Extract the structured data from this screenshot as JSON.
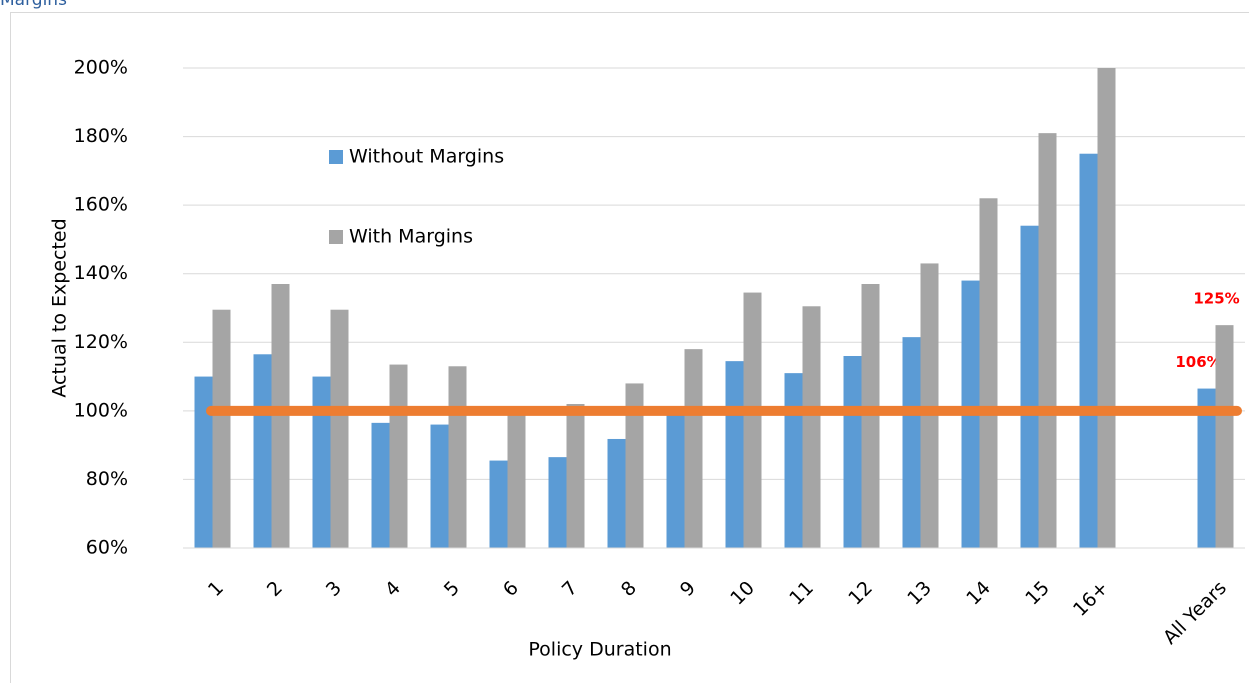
{
  "chart_data": {
    "type": "bar",
    "title": "Margins",
    "x_label": "Policy Duration",
    "y_label": "Actual to Expected",
    "categories": [
      "1",
      "2",
      "3",
      "4",
      "5",
      "6",
      "7",
      "8",
      "9",
      "10",
      "11",
      "12",
      "13",
      "14",
      "15",
      "16+",
      null,
      "All Years"
    ],
    "series": [
      {
        "name": "Without Margins",
        "color": "#5b9bd5",
        "values": [
          110,
          116.5,
          110,
          96.5,
          96,
          85.5,
          86.5,
          91.8,
          100,
          114.5,
          111,
          116,
          121.5,
          138,
          154,
          175,
          null,
          106.5
        ],
        "value_labels": [
          null,
          null,
          null,
          null,
          null,
          null,
          null,
          null,
          null,
          null,
          null,
          null,
          null,
          null,
          null,
          null,
          null,
          "106%"
        ]
      },
      {
        "name": "With Margins",
        "color": "#a5a5a5",
        "values": [
          129.5,
          137,
          129.5,
          113.5,
          113,
          100,
          102,
          108,
          118,
          134.5,
          130.5,
          137,
          143,
          162,
          181,
          200,
          null,
          125
        ],
        "value_labels": [
          null,
          null,
          null,
          null,
          null,
          null,
          null,
          null,
          null,
          null,
          null,
          null,
          null,
          null,
          null,
          null,
          null,
          "125%"
        ]
      }
    ],
    "reference_line": {
      "value": 100,
      "color": "#ed7d31"
    },
    "ylim": [
      60,
      200
    ],
    "yticks": [
      {
        "value": 60,
        "label": "60%"
      },
      {
        "value": 80,
        "label": "80%"
      },
      {
        "value": 100,
        "label": "100%"
      },
      {
        "value": 120,
        "label": "120%"
      },
      {
        "value": 140,
        "label": "140%"
      },
      {
        "value": 160,
        "label": "160%"
      },
      {
        "value": 180,
        "label": "180%"
      },
      {
        "value": 200,
        "label": "200%"
      }
    ],
    "grid": true,
    "legend": "upper-left",
    "value_label_color": "#ff0000"
  }
}
